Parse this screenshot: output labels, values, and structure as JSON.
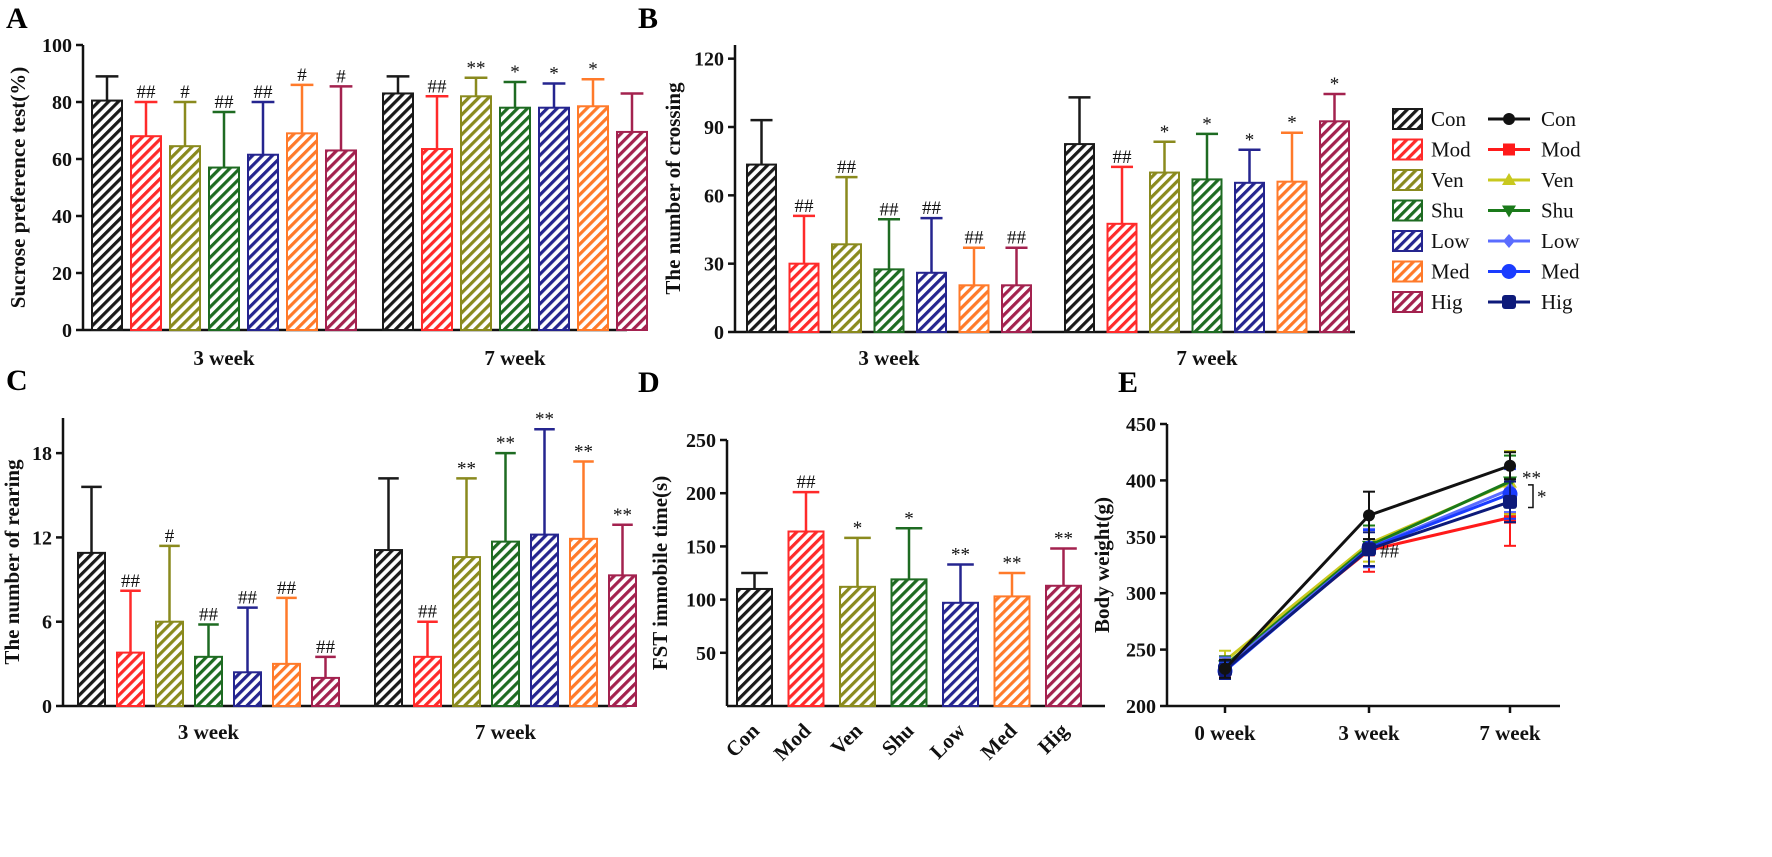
{
  "groups": [
    "Con",
    "Mod",
    "Ven",
    "Shu",
    "Low",
    "Med",
    "Hig"
  ],
  "colors": {
    "Con": "#1a1a1a",
    "Mod": "#ff2a2a",
    "Ven": "#8a8a1e",
    "Shu": "#1e6b22",
    "Low": "#25258f",
    "Med": "#ff7a2a",
    "Hig": "#a3224f"
  },
  "legend": {
    "bar_labels": [
      "Con",
      "Mod",
      "Ven",
      "Shu",
      "Low",
      "Med",
      "Hig"
    ],
    "line_labels": [
      "Con",
      "Mod",
      "Ven",
      "Shu",
      "Low",
      "Med",
      "Hig"
    ]
  },
  "chart_data": [
    {
      "panel": "A",
      "type": "bar",
      "ylabel": "Sucrose preference test(%)",
      "ylim": [
        0,
        100
      ],
      "yticks": [
        0,
        20,
        40,
        60,
        80,
        100
      ],
      "categories": [
        "3 week",
        "7 week"
      ],
      "series": [
        {
          "name": "Con",
          "values": [
            80.5,
            83
          ],
          "errors": [
            8.5,
            6
          ],
          "sig": [
            "",
            ""
          ]
        },
        {
          "name": "Mod",
          "values": [
            68,
            63.5
          ],
          "errors": [
            12,
            18.5
          ],
          "sig": [
            "##",
            "##"
          ]
        },
        {
          "name": "Ven",
          "values": [
            64.5,
            82
          ],
          "errors": [
            15.5,
            6.5
          ],
          "sig": [
            "#",
            "**"
          ]
        },
        {
          "name": "Shu",
          "values": [
            57,
            78
          ],
          "errors": [
            19.5,
            9
          ],
          "sig": [
            "##",
            "*"
          ]
        },
        {
          "name": "Low",
          "values": [
            61.5,
            78
          ],
          "errors": [
            18.5,
            8.5
          ],
          "sig": [
            "##",
            "*"
          ]
        },
        {
          "name": "Med",
          "values": [
            69,
            78.5
          ],
          "errors": [
            17,
            9.5
          ],
          "sig": [
            "#",
            "*"
          ]
        },
        {
          "name": "Hig",
          "values": [
            63,
            69.5
          ],
          "errors": [
            22.5,
            13.5
          ],
          "sig": [
            "#",
            ""
          ]
        }
      ]
    },
    {
      "panel": "B",
      "type": "bar",
      "ylabel": "The number of crossing",
      "ylim": [
        0,
        126
      ],
      "yticks": [
        0,
        30,
        60,
        90,
        120
      ],
      "categories": [
        "3 week",
        "7 week"
      ],
      "series": [
        {
          "name": "Con",
          "values": [
            73.5,
            82.5
          ],
          "errors": [
            19.5,
            20.5
          ],
          "sig": [
            "",
            ""
          ]
        },
        {
          "name": "Mod",
          "values": [
            30,
            47.5
          ],
          "errors": [
            21,
            25
          ],
          "sig": [
            "##",
            "##"
          ]
        },
        {
          "name": "Ven",
          "values": [
            38.5,
            70
          ],
          "errors": [
            29.5,
            13.5
          ],
          "sig": [
            "##",
            "*"
          ]
        },
        {
          "name": "Shu",
          "values": [
            27.5,
            67
          ],
          "errors": [
            22,
            20
          ],
          "sig": [
            "##",
            "*"
          ]
        },
        {
          "name": "Low",
          "values": [
            26,
            65.5
          ],
          "errors": [
            24,
            14.5
          ],
          "sig": [
            "##",
            "*"
          ]
        },
        {
          "name": "Med",
          "values": [
            20.5,
            66
          ],
          "errors": [
            16.5,
            21.5
          ],
          "sig": [
            "##",
            "*"
          ]
        },
        {
          "name": "Hig",
          "values": [
            20.5,
            92.5
          ],
          "errors": [
            16.5,
            12
          ],
          "sig": [
            "##",
            "*"
          ]
        }
      ]
    },
    {
      "panel": "C",
      "type": "bar",
      "ylabel": "The number of rearing",
      "ylim": [
        0,
        20.5
      ],
      "yticks": [
        0,
        6,
        12,
        18
      ],
      "categories": [
        "3 week",
        "7 week"
      ],
      "series": [
        {
          "name": "Con",
          "values": [
            10.9,
            11.1
          ],
          "errors": [
            4.7,
            5.1
          ],
          "sig": [
            "",
            ""
          ]
        },
        {
          "name": "Mod",
          "values": [
            3.8,
            3.5
          ],
          "errors": [
            4.4,
            2.5
          ],
          "sig": [
            "##",
            "##"
          ]
        },
        {
          "name": "Ven",
          "values": [
            6,
            10.6
          ],
          "errors": [
            5.4,
            5.6
          ],
          "sig": [
            "#",
            "**"
          ]
        },
        {
          "name": "Shu",
          "values": [
            3.5,
            11.7
          ],
          "errors": [
            2.3,
            6.3
          ],
          "sig": [
            "##",
            "**"
          ]
        },
        {
          "name": "Low",
          "values": [
            2.4,
            12.2
          ],
          "errors": [
            4.6,
            7.5
          ],
          "sig": [
            "##",
            "**"
          ]
        },
        {
          "name": "Med",
          "values": [
            3,
            11.9
          ],
          "errors": [
            4.7,
            5.5
          ],
          "sig": [
            "##",
            "**"
          ]
        },
        {
          "name": "Hig",
          "values": [
            2,
            9.3
          ],
          "errors": [
            1.5,
            3.6
          ],
          "sig": [
            "##",
            "**"
          ]
        }
      ]
    },
    {
      "panel": "D",
      "type": "bar",
      "ylabel": "FST immobile time(s)",
      "ylim": [
        0,
        250
      ],
      "yticks": [
        50,
        100,
        150,
        200,
        250
      ],
      "categories": [
        "Con",
        "Mod",
        "Ven",
        "Shu",
        "Low",
        "Med",
        "Hig"
      ],
      "values": [
        110,
        164,
        112,
        119,
        97,
        103,
        113
      ],
      "errors": [
        15,
        37,
        46,
        48,
        36,
        22,
        35
      ],
      "sig": [
        "",
        "##",
        "*",
        "*",
        "**",
        "**",
        "**"
      ]
    },
    {
      "panel": "E",
      "type": "line",
      "ylabel": "Body weight(g)",
      "ylim": [
        200,
        450
      ],
      "yticks": [
        200,
        250,
        300,
        350,
        400,
        450
      ],
      "x": [
        "0 week",
        "3 week",
        "7 week"
      ],
      "series": [
        {
          "name": "Con",
          "values": [
            233,
            369,
            413
          ],
          "errors": [
            8,
            21,
            12
          ]
        },
        {
          "name": "Mod",
          "values": [
            235,
            338,
            367
          ],
          "errors": [
            9,
            19,
            25
          ]
        },
        {
          "name": "Ven",
          "values": [
            240,
            344,
            398
          ],
          "errors": [
            9,
            16,
            28
          ]
        },
        {
          "name": "Shu",
          "values": [
            236,
            342,
            399
          ],
          "errors": [
            8,
            18,
            23
          ]
        },
        {
          "name": "Low",
          "values": [
            234,
            340,
            392
          ],
          "errors": [
            9,
            17,
            20
          ]
        },
        {
          "name": "Med",
          "values": [
            231,
            340,
            388
          ],
          "errors": [
            7,
            16,
            22
          ]
        },
        {
          "name": "Hig",
          "values": [
            232,
            339,
            381
          ],
          "errors": [
            8,
            15,
            18
          ]
        }
      ],
      "annotations": [
        {
          "text": "##",
          "at": "3 week"
        },
        {
          "text": "**",
          "at": "7 week"
        },
        {
          "text": "*",
          "at": "7 week bracket"
        }
      ]
    }
  ]
}
